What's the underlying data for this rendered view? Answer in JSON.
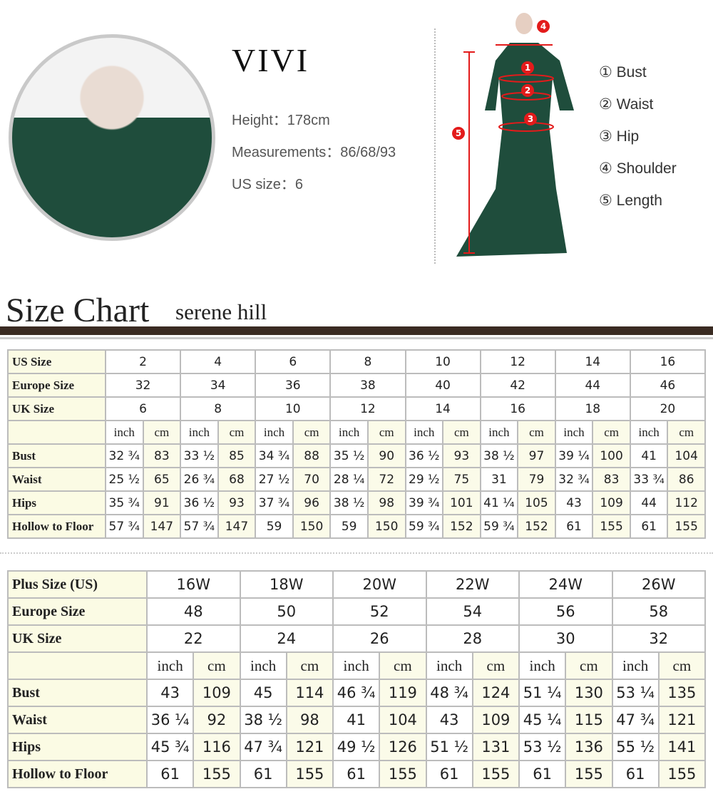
{
  "model": {
    "name": "VIVI",
    "height": "Height：178cm",
    "measurements": "Measurements：86/68/93",
    "us_size": "US size：6"
  },
  "legend": [
    {
      "num": "①",
      "label": "Bust"
    },
    {
      "num": "②",
      "label": "Waist"
    },
    {
      "num": "③",
      "label": "Hip"
    },
    {
      "num": "④",
      "label": "Shoulder"
    },
    {
      "num": "⑤",
      "label": "Length"
    }
  ],
  "figure_markers": [
    "1",
    "2",
    "3",
    "4",
    "5"
  ],
  "colors": {
    "dress": "#1f4d3c",
    "marker": "#e31b1b",
    "header_bar": "#3a2b22",
    "label_bg": "#fbfbe4"
  },
  "size_chart": {
    "title": "Size Chart",
    "brand": "serene hill"
  },
  "standard_table": {
    "rows_head": [
      {
        "label": "US Size",
        "values": [
          "2",
          "4",
          "6",
          "8",
          "10",
          "12",
          "14",
          "16"
        ]
      },
      {
        "label": "Europe Size",
        "values": [
          "32",
          "34",
          "36",
          "38",
          "40",
          "42",
          "44",
          "46"
        ]
      },
      {
        "label": "UK Size",
        "values": [
          "6",
          "8",
          "10",
          "12",
          "14",
          "16",
          "18",
          "20"
        ]
      }
    ],
    "units": [
      "inch",
      "cm"
    ],
    "rows": [
      {
        "label": "Bust",
        "values": [
          "32 ¾",
          "83",
          "33 ½",
          "85",
          "34 ¾",
          "88",
          "35 ½",
          "90",
          "36 ½",
          "93",
          "38 ½",
          "97",
          "39 ¼",
          "100",
          "41",
          "104"
        ]
      },
      {
        "label": "Waist",
        "values": [
          "25 ½",
          "65",
          "26 ¾",
          "68",
          "27 ½",
          "70",
          "28 ¼",
          "72",
          "29 ½",
          "75",
          "31",
          "79",
          "32 ¾",
          "83",
          "33 ¾",
          "86"
        ]
      },
      {
        "label": "Hips",
        "values": [
          "35 ¾",
          "91",
          "36 ½",
          "93",
          "37 ¾",
          "96",
          "38 ½",
          "98",
          "39 ¾",
          "101",
          "41 ¼",
          "105",
          "43",
          "109",
          "44",
          "112"
        ]
      },
      {
        "label": "Hollow to Floor",
        "values": [
          "57 ¾",
          "147",
          "57 ¾",
          "147",
          "59",
          "150",
          "59",
          "150",
          "59 ¾",
          "152",
          "59 ¾",
          "152",
          "61",
          "155",
          "61",
          "155"
        ]
      }
    ]
  },
  "plus_table": {
    "rows_head": [
      {
        "label": "Plus Size (US)",
        "values": [
          "16W",
          "18W",
          "20W",
          "22W",
          "24W",
          "26W"
        ]
      },
      {
        "label": "Europe Size",
        "values": [
          "48",
          "50",
          "52",
          "54",
          "56",
          "58"
        ]
      },
      {
        "label": "UK Size",
        "values": [
          "22",
          "24",
          "26",
          "28",
          "30",
          "32"
        ]
      }
    ],
    "units": [
      "inch",
      "cm"
    ],
    "rows": [
      {
        "label": "Bust",
        "values": [
          "43",
          "109",
          "45",
          "114",
          "46 ¾",
          "119",
          "48 ¾",
          "124",
          "51 ¼",
          "130",
          "53 ¼",
          "135"
        ]
      },
      {
        "label": "Waist",
        "values": [
          "36 ¼",
          "92",
          "38 ½",
          "98",
          "41",
          "104",
          "43",
          "109",
          "45 ¼",
          "115",
          "47 ¾",
          "121"
        ]
      },
      {
        "label": "Hips",
        "values": [
          "45 ¾",
          "116",
          "47 ¾",
          "121",
          "49 ½",
          "126",
          "51 ½",
          "131",
          "53 ½",
          "136",
          "55 ½",
          "141"
        ]
      },
      {
        "label": "Hollow to Floor",
        "values": [
          "61",
          "155",
          "61",
          "155",
          "61",
          "155",
          "61",
          "155",
          "61",
          "155",
          "61",
          "155"
        ]
      }
    ]
  }
}
